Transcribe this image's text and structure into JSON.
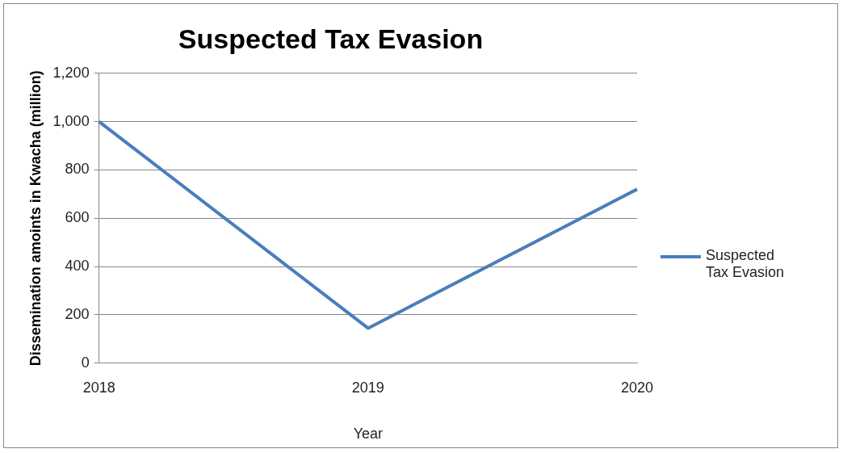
{
  "chart_data": {
    "type": "line",
    "title": "Suspected Tax Evasion",
    "xlabel": "Year",
    "ylabel": "Dissemination amoints in Kwacha (million)",
    "categories": [
      "2018",
      "2019",
      "2020"
    ],
    "series": [
      {
        "name": "Suspected Tax Evasion",
        "color": "#4a7ebb",
        "values": [
          1000,
          145,
          720
        ]
      }
    ],
    "ylim": [
      0,
      1200
    ],
    "yticks": [
      {
        "value": 0,
        "label": "0"
      },
      {
        "value": 200,
        "label": "200"
      },
      {
        "value": 400,
        "label": "400"
      },
      {
        "value": 600,
        "label": "600"
      },
      {
        "value": 800,
        "label": "800"
      },
      {
        "value": 1000,
        "label": "1,000"
      },
      {
        "value": 1200,
        "label": "1,200"
      }
    ],
    "grid": "y",
    "legend": "right",
    "marker": "none",
    "line_style": "solid"
  }
}
